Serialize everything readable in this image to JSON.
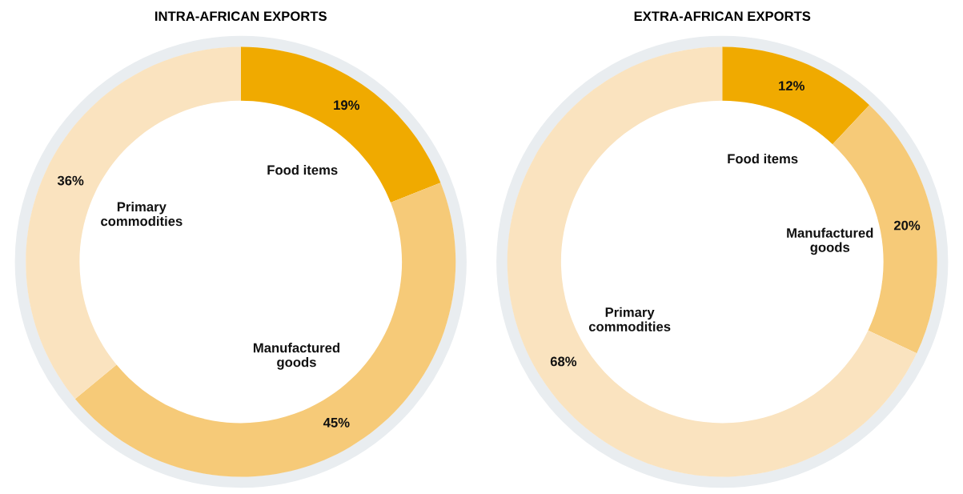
{
  "chart_data": [
    {
      "type": "donut",
      "title": "INTRA-AFRICAN EXPORTS",
      "categories": [
        "Food items",
        "Manufactured goods",
        "Primary commodities"
      ],
      "values": [
        19,
        45,
        36
      ],
      "colors": [
        "#f0aa00",
        "#f6ca78",
        "#fae3bf"
      ],
      "value_labels": [
        "19%",
        "45%",
        "36%"
      ],
      "legend": false
    },
    {
      "type": "donut",
      "title": "EXTRA-AFRICAN EXPORTS",
      "categories": [
        "Food items",
        "Manufactured goods",
        "Primary commodities"
      ],
      "values": [
        12,
        20,
        68
      ],
      "colors": [
        "#f0aa00",
        "#f6ca78",
        "#fae3bf"
      ],
      "value_labels": [
        "12%",
        "20%",
        "68%"
      ],
      "legend": false
    }
  ]
}
